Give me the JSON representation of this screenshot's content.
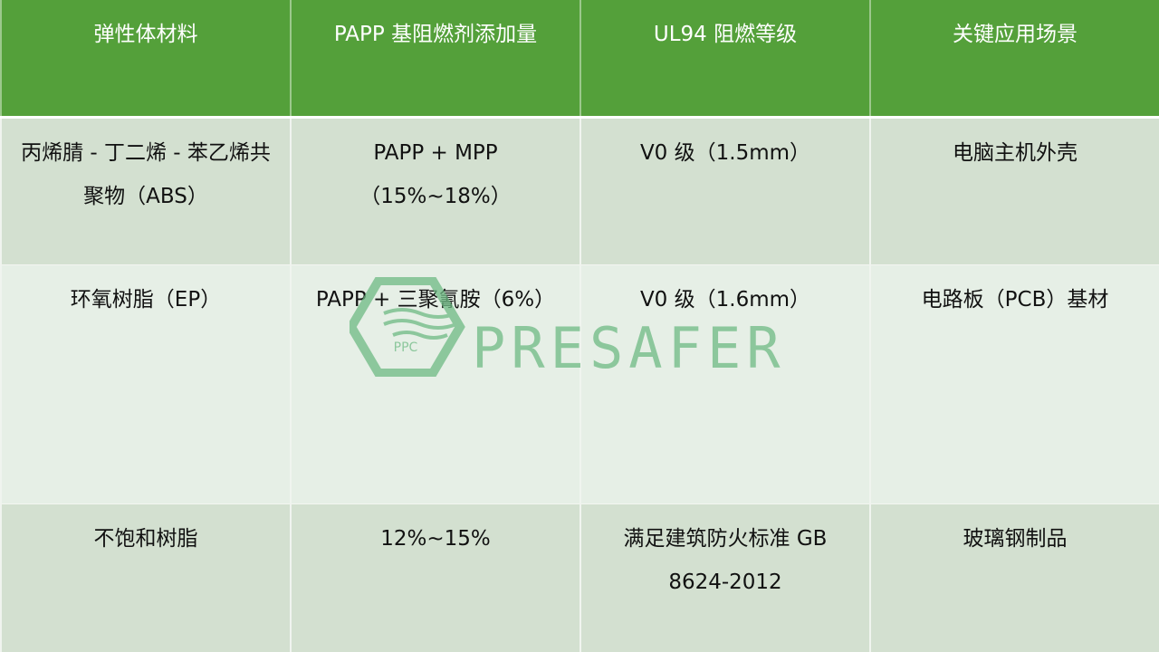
{
  "table": {
    "headers": [
      "弹性体材料",
      "PAPP 基阻燃剂添加量",
      "UL94 阻燃等级",
      "关键应用场景"
    ],
    "rows": [
      [
        "丙烯腈 - 丁二烯 - 苯乙烯共聚物（ABS）",
        "PAPP + MPP（15%~18%）",
        "V0 级（1.5mm）",
        "电脑主机外壳"
      ],
      [
        "环氧树脂（EP）",
        "PAPP + 三聚氰胺（6%）",
        "V0 级（1.6mm）",
        "电路板（PCB）基材"
      ],
      [
        "不饱和树脂",
        "12%~15%",
        "满足建筑防火标准 GB 8624-2012",
        "玻璃钢制品"
      ]
    ]
  },
  "watermark": {
    "brand": "PRESAFER",
    "badge": "PPC",
    "color": "#6fba84"
  },
  "colors": {
    "header": "#54a03a",
    "row_odd": "#d3e0d0",
    "row_even": "#e6efe6"
  }
}
